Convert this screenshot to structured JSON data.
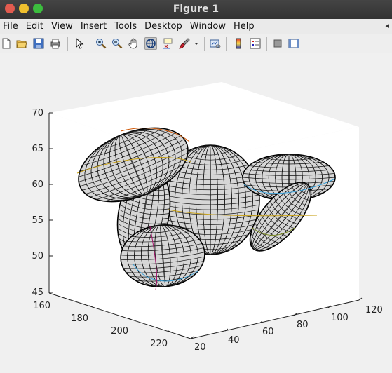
{
  "window": {
    "title": "Figure 1",
    "buttons": [
      {
        "name": "close-button",
        "color": "#e25b4f"
      },
      {
        "name": "minimize-button",
        "color": "#f0c02e"
      },
      {
        "name": "maximize-button",
        "color": "#3cbd3e"
      }
    ]
  },
  "menubar": {
    "items": [
      "File",
      "Edit",
      "View",
      "Insert",
      "Tools",
      "Desktop",
      "Window",
      "Help"
    ],
    "right_arrow": "◂"
  },
  "toolbar": {
    "icons": [
      "new-figure-icon",
      "open-file-icon",
      "save-icon",
      "print-icon",
      "pointer-icon",
      "zoom-in-icon",
      "zoom-out-icon",
      "pan-icon",
      "rotate-3d-icon",
      "data-cursor-icon",
      "brush-icon",
      "dropdown-arrow-icon",
      "link-plot-icon",
      "insert-colorbar-icon",
      "insert-legend-icon",
      "hide-plot-tools-icon",
      "show-plot-tools-icon"
    ],
    "active": "rotate-3d-icon"
  },
  "axes": {
    "z_ticks": [
      "70",
      "65",
      "60",
      "55",
      "50",
      "45"
    ],
    "x_ticks": [
      "160",
      "180",
      "200",
      "220"
    ],
    "y_ticks": [
      "20",
      "40",
      "60",
      "80",
      "100",
      "120"
    ]
  },
  "chart_data": {
    "type": "surface",
    "description_series": [
      "ellipsoid mesh surfaces"
    ],
    "x_range": [
      160,
      225
    ],
    "y_range": [
      20,
      120
    ],
    "z_range": [
      45,
      70
    ]
  }
}
